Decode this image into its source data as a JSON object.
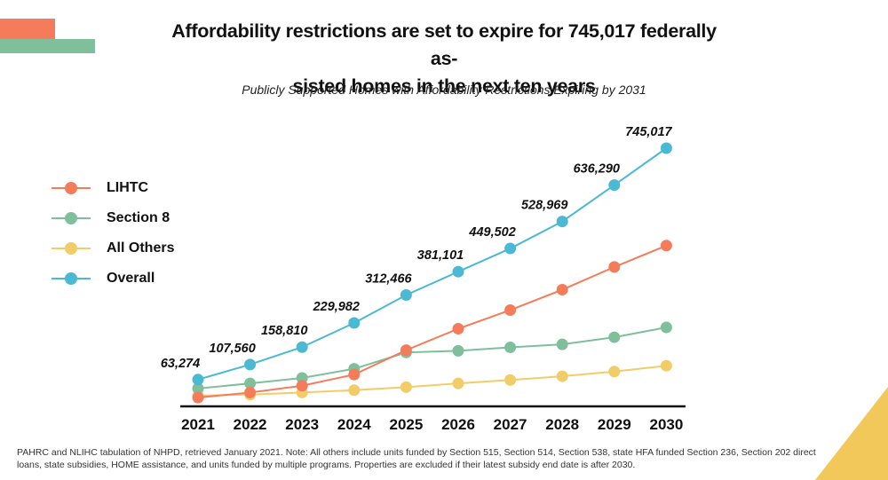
{
  "title": "Affordability restrictions are set to expire for 745,017 federally as-sisted homes in the next ten years",
  "title_line1": "Affordability restrictions are set to expire for 745,017 federally as-",
  "title_line2": "sisted homes in the next ten years",
  "subtitle": "Publicly Supported Homes with Affordability Restrictions Expiring by 2031",
  "footnote": "PAHRC and NLIHC tabulation of NHPD, retrieved January 2021. Note: All others include units funded by Section 515, Section 514, Section 538, state HFA funded Section 236, Section 202 direct loans, state subsidies, HOME assistance, and units funded by multiple programs. Properties are excluded if their latest subsidy end date is after 2030.",
  "colors": {
    "lihtc": "#f47c5a",
    "section8": "#7fbf9c",
    "all_others": "#f3cc6a",
    "overall": "#4bb9d3",
    "deco_orange": "#f47c5a",
    "deco_green": "#7fbf9c",
    "deco_yellow": "#f3c85a"
  },
  "chart_data": {
    "type": "line",
    "title": "Affordability restrictions are set to expire for 745,017 federally as-sisted homes in the next ten years",
    "subtitle": "Publicly Supported Homes with Affordability Restrictions Expiring by 2031",
    "x": [
      "2021",
      "2022",
      "2023",
      "2024",
      "2025",
      "2026",
      "2027",
      "2028",
      "2029",
      "2030"
    ],
    "xlabel": "",
    "ylabel": "",
    "ylim": [
      0,
      800000
    ],
    "grid": false,
    "legend_position": "left",
    "series": [
      {
        "name": "LIHTC",
        "color": "#f47c5a",
        "values": [
          10000,
          25000,
          45000,
          78000,
          150000,
          213000,
          268000,
          328000,
          395000,
          458000
        ]
      },
      {
        "name": "Section 8",
        "color": "#7fbf9c",
        "values": [
          37000,
          52000,
          68000,
          95000,
          143000,
          148000,
          158000,
          167000,
          188000,
          217000
        ]
      },
      {
        "name": "All Others",
        "color": "#f3cc6a",
        "values": [
          16000,
          19000,
          25000,
          32000,
          41000,
          52000,
          62000,
          73000,
          87000,
          104000
        ]
      },
      {
        "name": "Overall",
        "color": "#4bb9d3",
        "values": [
          63274,
          107560,
          158810,
          229982,
          312466,
          381101,
          449502,
          528969,
          636290,
          745017
        ],
        "data_labels": [
          "63,274",
          "107,560",
          "158,810",
          "229,982",
          "312,466",
          "381,101",
          "449,502",
          "528,969",
          "636,290",
          "745,017"
        ]
      }
    ]
  }
}
